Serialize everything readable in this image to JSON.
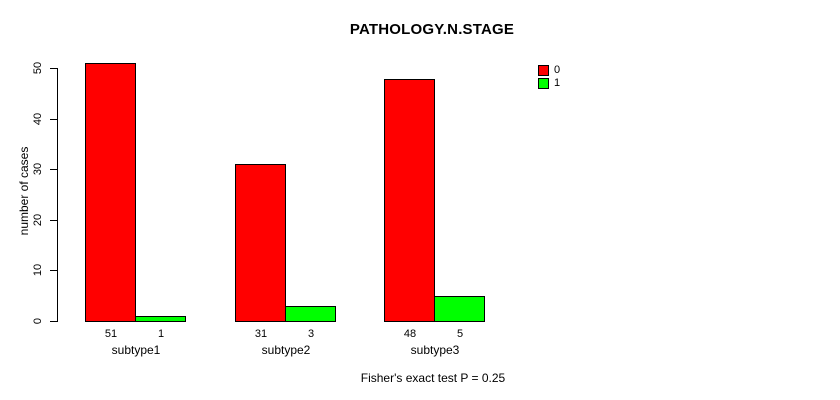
{
  "chart_data": {
    "type": "bar",
    "title": "PATHOLOGY.N.STAGE",
    "ylabel": "number of cases",
    "xlabel": "",
    "categories": [
      "subtype1",
      "subtype2",
      "subtype3"
    ],
    "series": [
      {
        "name": "0",
        "color": "#ff0000",
        "values": [
          51,
          31,
          48
        ]
      },
      {
        "name": "1",
        "color": "#00ff00",
        "values": [
          1,
          3,
          5
        ]
      }
    ],
    "ylim": [
      0,
      50
    ],
    "yticks": [
      0,
      10,
      20,
      30,
      40,
      50
    ],
    "grid": false,
    "legend_position": "top-right",
    "bar_value_labels_shown": true,
    "annotation": "Fisher's exact test P = 0.25"
  }
}
